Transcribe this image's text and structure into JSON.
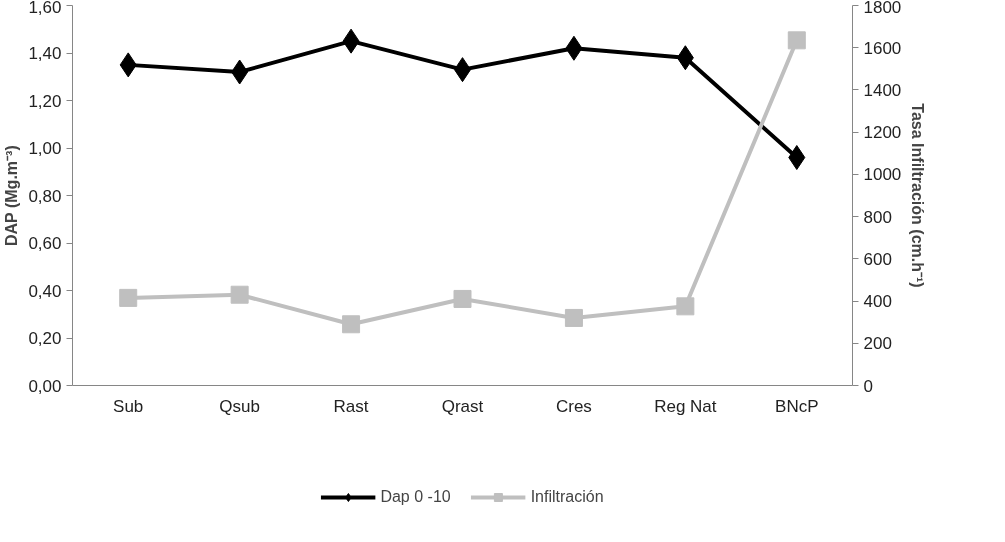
{
  "chart_data": {
    "type": "line",
    "categories": [
      "Sub",
      "Qsub",
      "Rast",
      "Qrast",
      "Cres",
      "Reg Nat",
      "BNcP"
    ],
    "ylabel": "DAP (Mg.m⁻³)",
    "y2label": "Tasa Infiltración (cm.h⁻¹)",
    "ylim": [
      0,
      1.6
    ],
    "yticks": [
      {
        "value": 0,
        "label": "0,00"
      },
      {
        "value": 0.2,
        "label": "0,20"
      },
      {
        "value": 0.4,
        "label": "0,40"
      },
      {
        "value": 0.6,
        "label": "0,60"
      },
      {
        "value": 0.8,
        "label": "0,80"
      },
      {
        "value": 1.0,
        "label": "1,00"
      },
      {
        "value": 1.2,
        "label": "1,20"
      },
      {
        "value": 1.4,
        "label": "1,40"
      },
      {
        "value": 1.6,
        "label": "1,60"
      }
    ],
    "y2lim": [
      0,
      1800
    ],
    "y2ticks": [
      0,
      200,
      400,
      600,
      800,
      1000,
      1200,
      1400,
      1600,
      1800
    ],
    "series": [
      {
        "name": "Dap 0 -10",
        "color": "#000000",
        "marker": "diamond",
        "values": [
          1.35,
          1.32,
          1.45,
          1.33,
          1.42,
          1.38,
          0.96
        ]
      },
      {
        "name": "Infiltración",
        "color": "#bfbfbf",
        "marker": "square",
        "axis": "y2",
        "values": [
          415,
          430,
          290,
          410,
          320,
          375,
          1635
        ]
      }
    ],
    "grid": false,
    "legend": "bottom"
  }
}
